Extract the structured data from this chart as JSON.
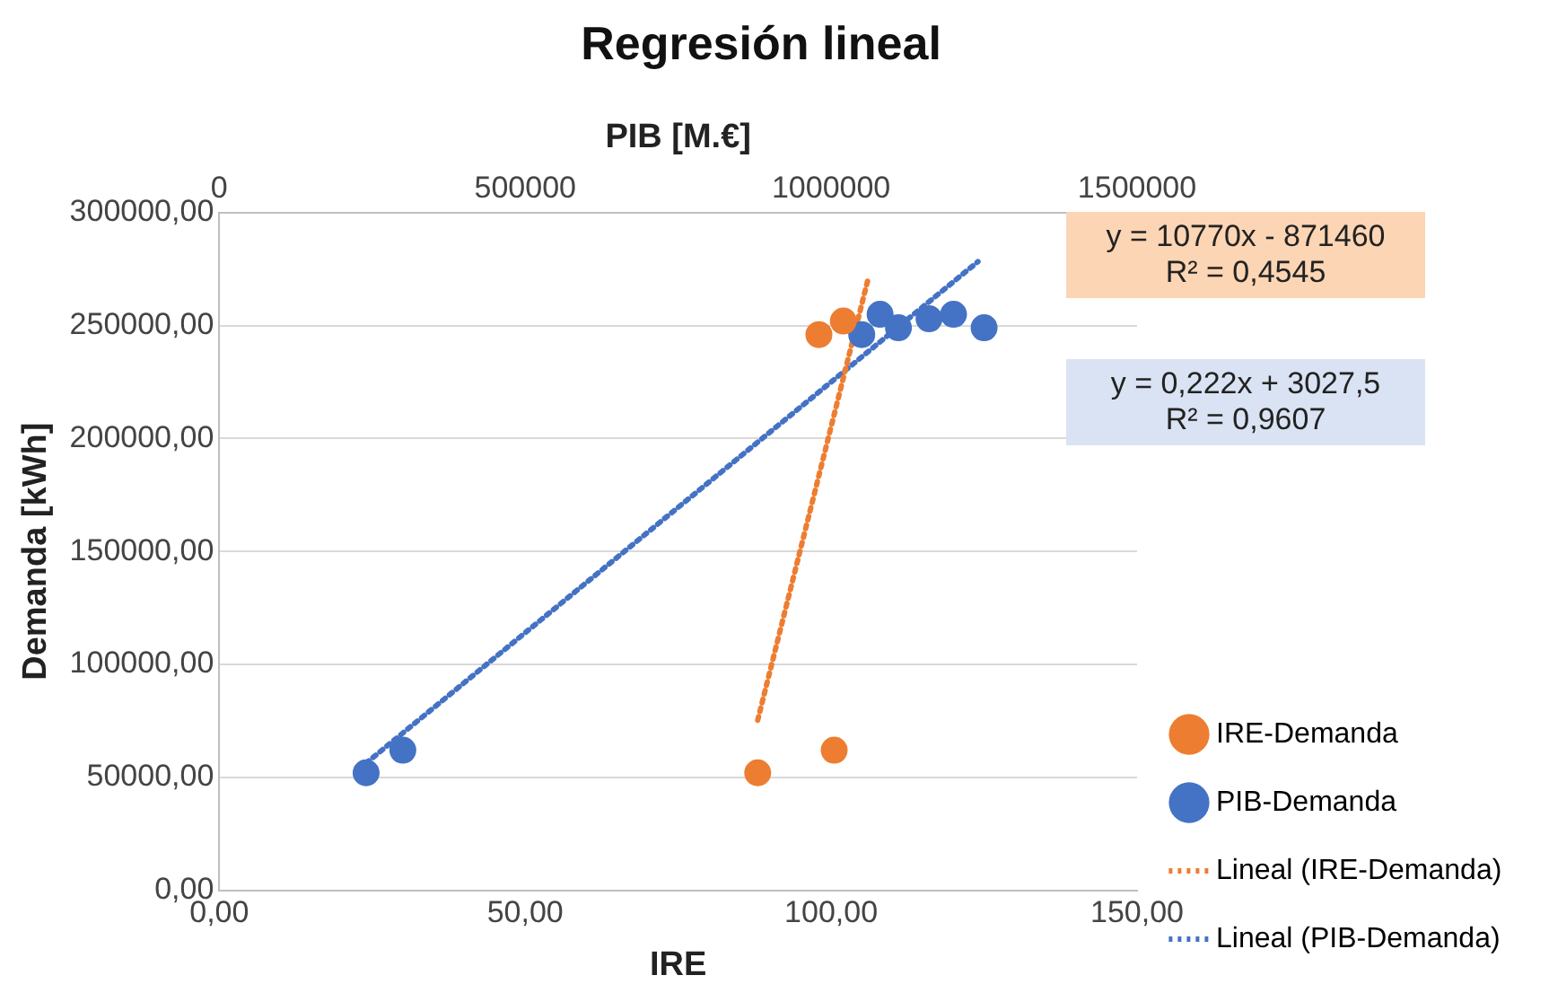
{
  "chart_data": {
    "type": "scatter",
    "title": "Regresión lineal",
    "xlabel": "IRE",
    "ylabel": "Demanda [kWh]",
    "x2label": "PIB [M.€]",
    "xlim": [
      0,
      150
    ],
    "xticks": [
      {
        "value": 0,
        "label": "0,00"
      },
      {
        "value": 50,
        "label": "50,00"
      },
      {
        "value": 100,
        "label": "100,00"
      },
      {
        "value": 150,
        "label": "150,00"
      }
    ],
    "x2lim": [
      0,
      1500000
    ],
    "x2ticks": [
      0,
      500000,
      1000000,
      1500000
    ],
    "ylim": [
      0,
      300000
    ],
    "yticks": [
      {
        "value": 0,
        "label": "0,00"
      },
      {
        "value": 50000,
        "label": "50000,00"
      },
      {
        "value": 100000,
        "label": "100000,00"
      },
      {
        "value": 150000,
        "label": "150000,00"
      },
      {
        "value": 200000,
        "label": "200000,00"
      },
      {
        "value": 250000,
        "label": "250000,00"
      },
      {
        "value": 300000,
        "label": "300000,00"
      }
    ],
    "grid": "y",
    "legend": "right",
    "marker": "circle",
    "annotations": [
      "y = 10770x - 871460\nR² = 0,4545",
      "y = 0,222x + 3027,5\nR² = 0,9607"
    ],
    "series": [
      {
        "name": "IRE-Demanda",
        "color": "#ed7d31",
        "x": [
          88,
          100.5,
          98,
          102
        ],
        "values": [
          52000,
          62000,
          246000,
          252000
        ]
      },
      {
        "name": "PIB-Demanda",
        "color": "#4472c4",
        "axis": "x2",
        "x": [
          240000,
          300000,
          1050000,
          1080000,
          1110000,
          1160000,
          1200000,
          1250000
        ],
        "values": [
          52000,
          62000,
          246000,
          255000,
          249000,
          253000,
          255000,
          249000
        ]
      },
      {
        "name": "Lineal (IRE-Demanda)",
        "type": "line",
        "color": "#ed7d31",
        "line_style": "dotted",
        "marker": "none",
        "x": [
          88,
          106
        ],
        "values": [
          75300,
          270200
        ]
      },
      {
        "name": "Lineal (PIB-Demanda)",
        "type": "line",
        "axis": "x2",
        "color": "#4472c4",
        "line_style": "dotted",
        "marker": "none",
        "x": [
          240000,
          1240000
        ],
        "values": [
          56300,
          278300
        ]
      }
    ]
  }
}
